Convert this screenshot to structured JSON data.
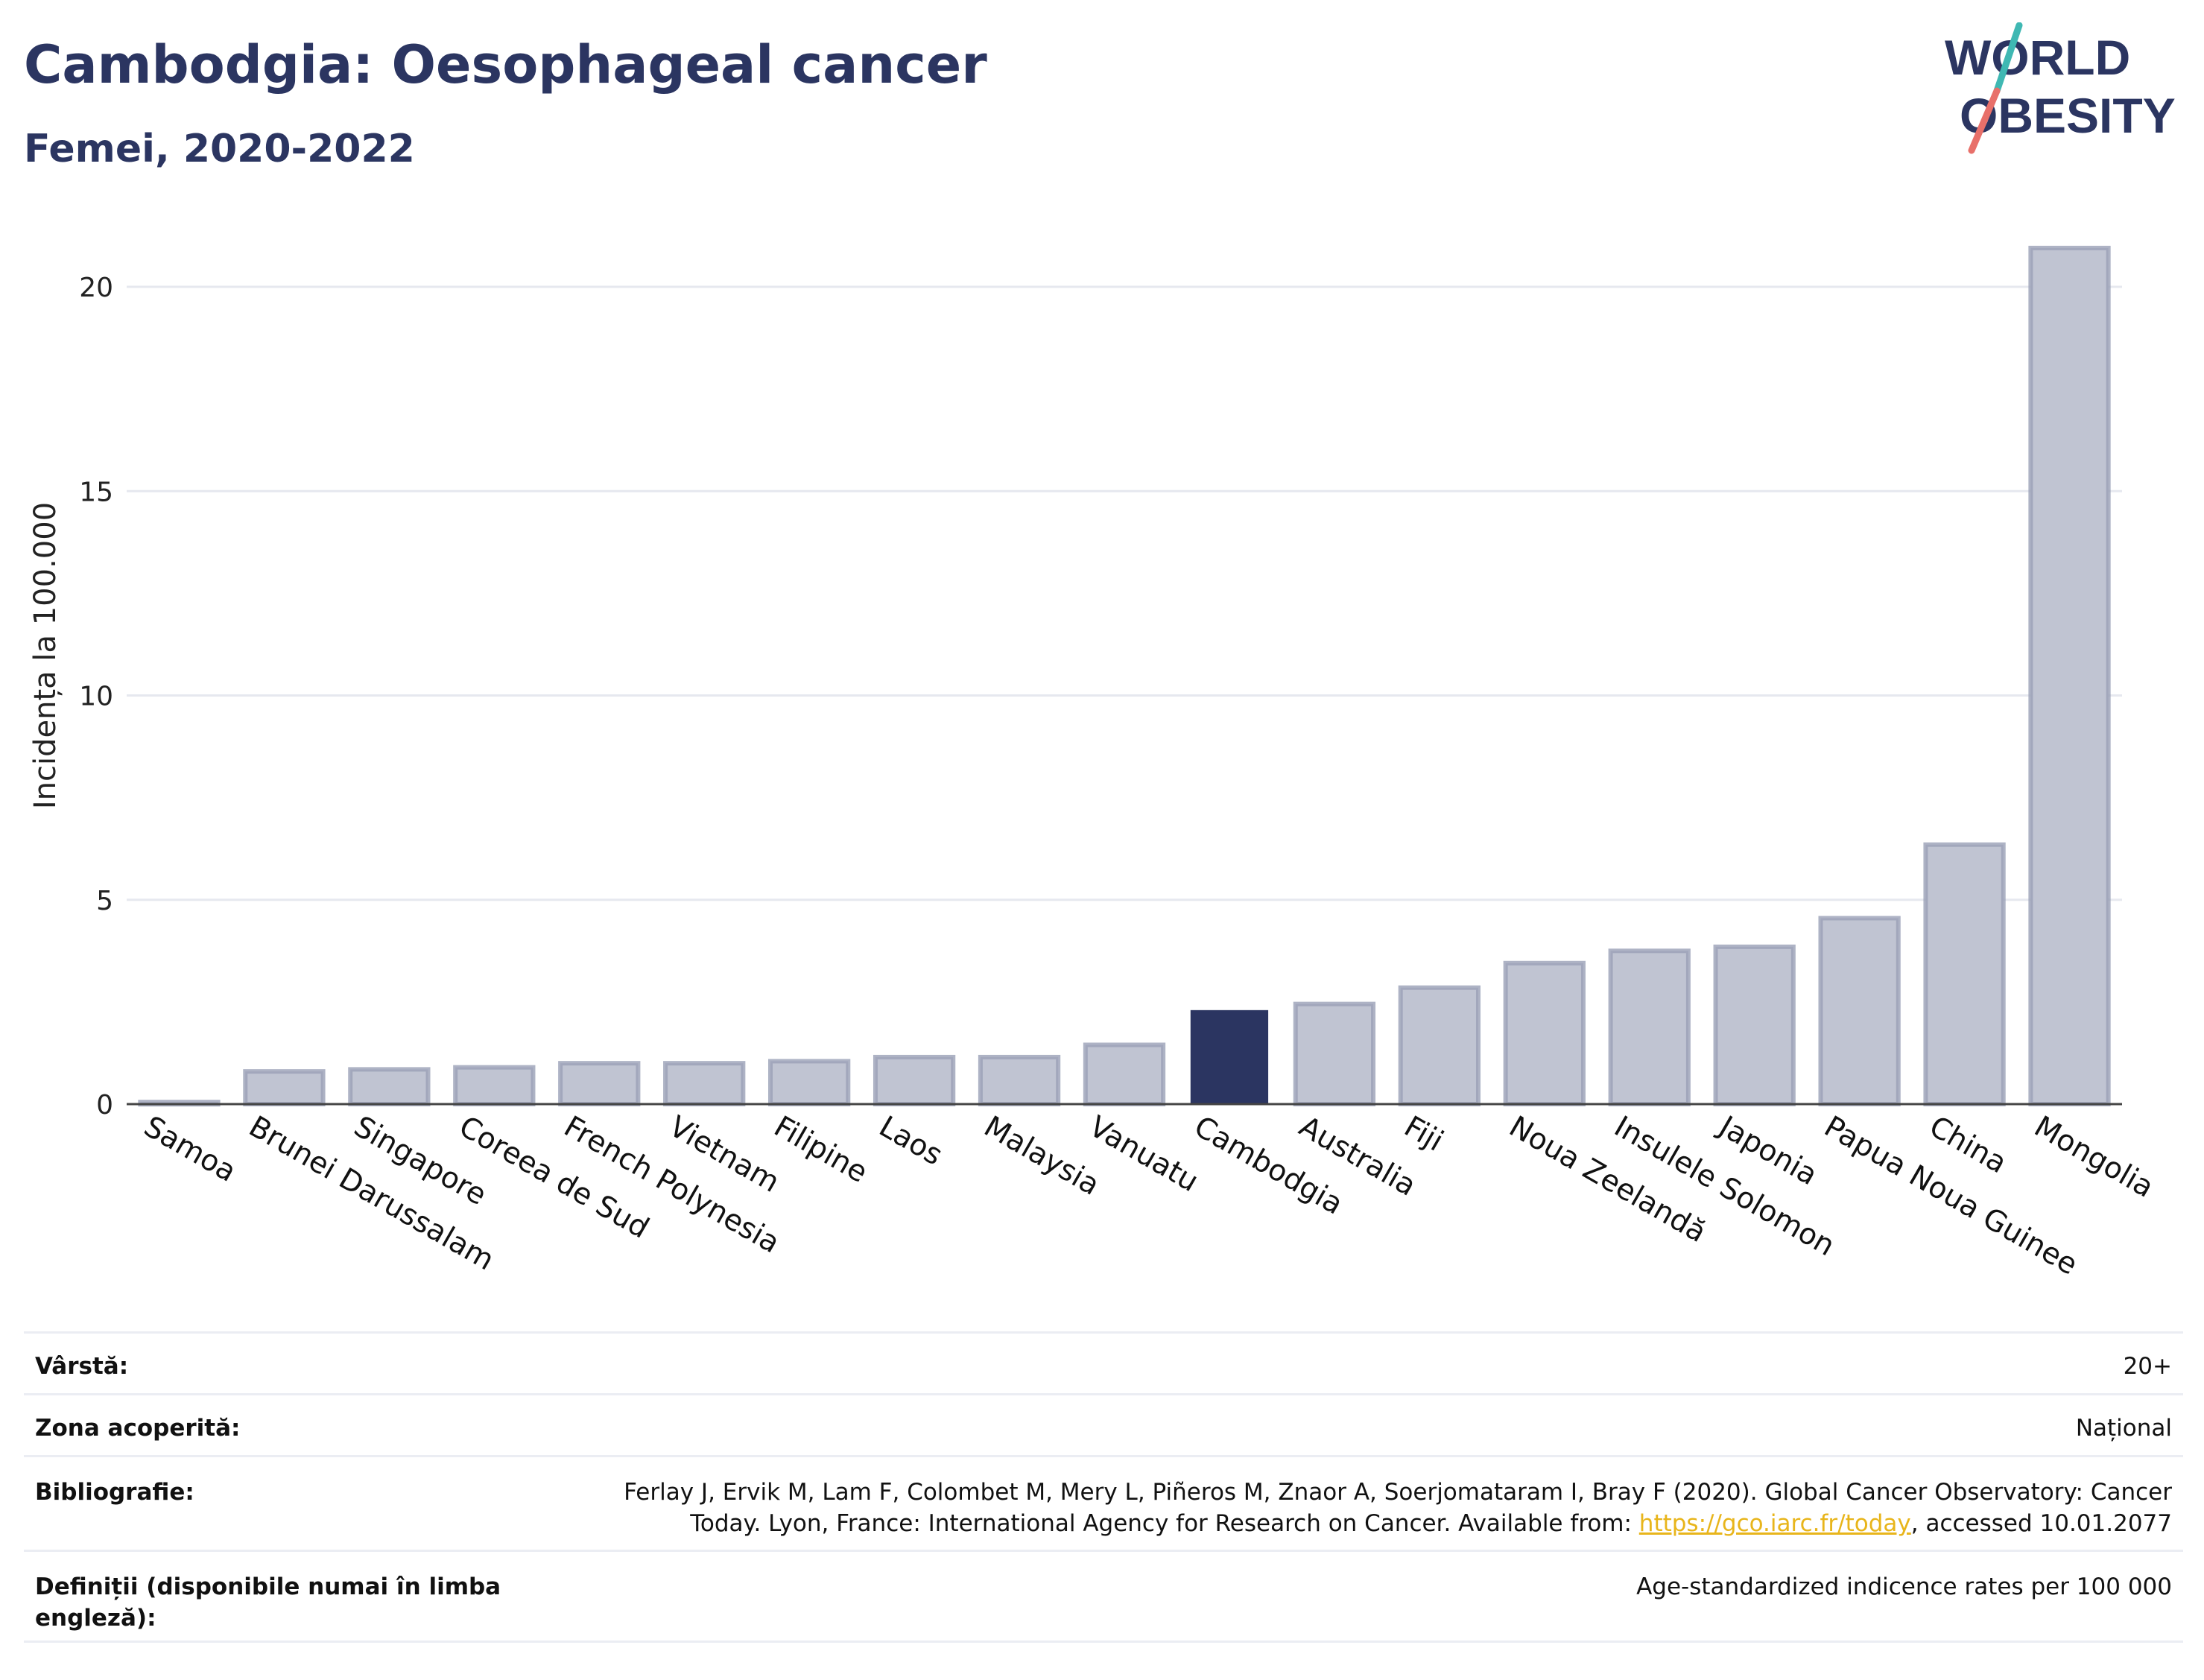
{
  "header": {
    "title": "Cambodgia: Oesophageal cancer",
    "subtitle": "Femei, 2020-2022"
  },
  "logo": {
    "line1": "WORLD",
    "line2": "OBESITY"
  },
  "colors": {
    "bar": "#c0c4d2",
    "bar_border": "#9aa0b7",
    "highlight": "#2b3561",
    "grid": "#e6e8ef",
    "text": "#2b3561",
    "link": "#e8b51b",
    "logo_teal": "#3fb8b3",
    "logo_coral": "#e8706a"
  },
  "chart_data": {
    "type": "bar",
    "ylabel": "Incidența la 100.000",
    "ylim": [
      0,
      21.5
    ],
    "yticks": [
      0,
      5,
      10,
      15,
      20
    ],
    "grid": true,
    "highlight": "Cambodgia",
    "categories": [
      "Samoa",
      "Brunei Darussalam",
      "Singapore",
      "Coreea de Sud",
      "French Polynesia",
      "Vietnam",
      "Filipine",
      "Laos",
      "Malaysia",
      "Vanuatu",
      "Cambodgia",
      "Australia",
      "Fiji",
      "Noua Zeelandă",
      "Insulele Solomon",
      "Japonia",
      "Papua Noua Guinee",
      "China",
      "Mongolia"
    ],
    "values": [
      0.05,
      0.8,
      0.85,
      0.9,
      1.0,
      1.0,
      1.05,
      1.15,
      1.15,
      1.45,
      2.3,
      2.45,
      2.85,
      3.45,
      3.75,
      3.85,
      4.55,
      6.35,
      20.95
    ]
  },
  "info": {
    "age_label": "Vârstă:",
    "age_value": "20+",
    "area_label": "Zona acoperită:",
    "area_value": "Național",
    "biblio_label": "Bibliografie:",
    "biblio_text": "Ferlay J, Ervik M, Lam F, Colombet M, Mery L, Piñeros M, Znaor A, Soerjomataram I, Bray F (2020). Global Cancer Observatory: Cancer Today. Lyon, France: International Agency for Research on Cancer. Available from: ",
    "biblio_link": "https://gco.iarc.fr/today",
    "biblio_suffix": ", accessed 10.01.2077",
    "def_label": "Definiții (disponibile numai în limba engleză):",
    "def_value": "Age-standardized indicence rates per 100 000"
  }
}
